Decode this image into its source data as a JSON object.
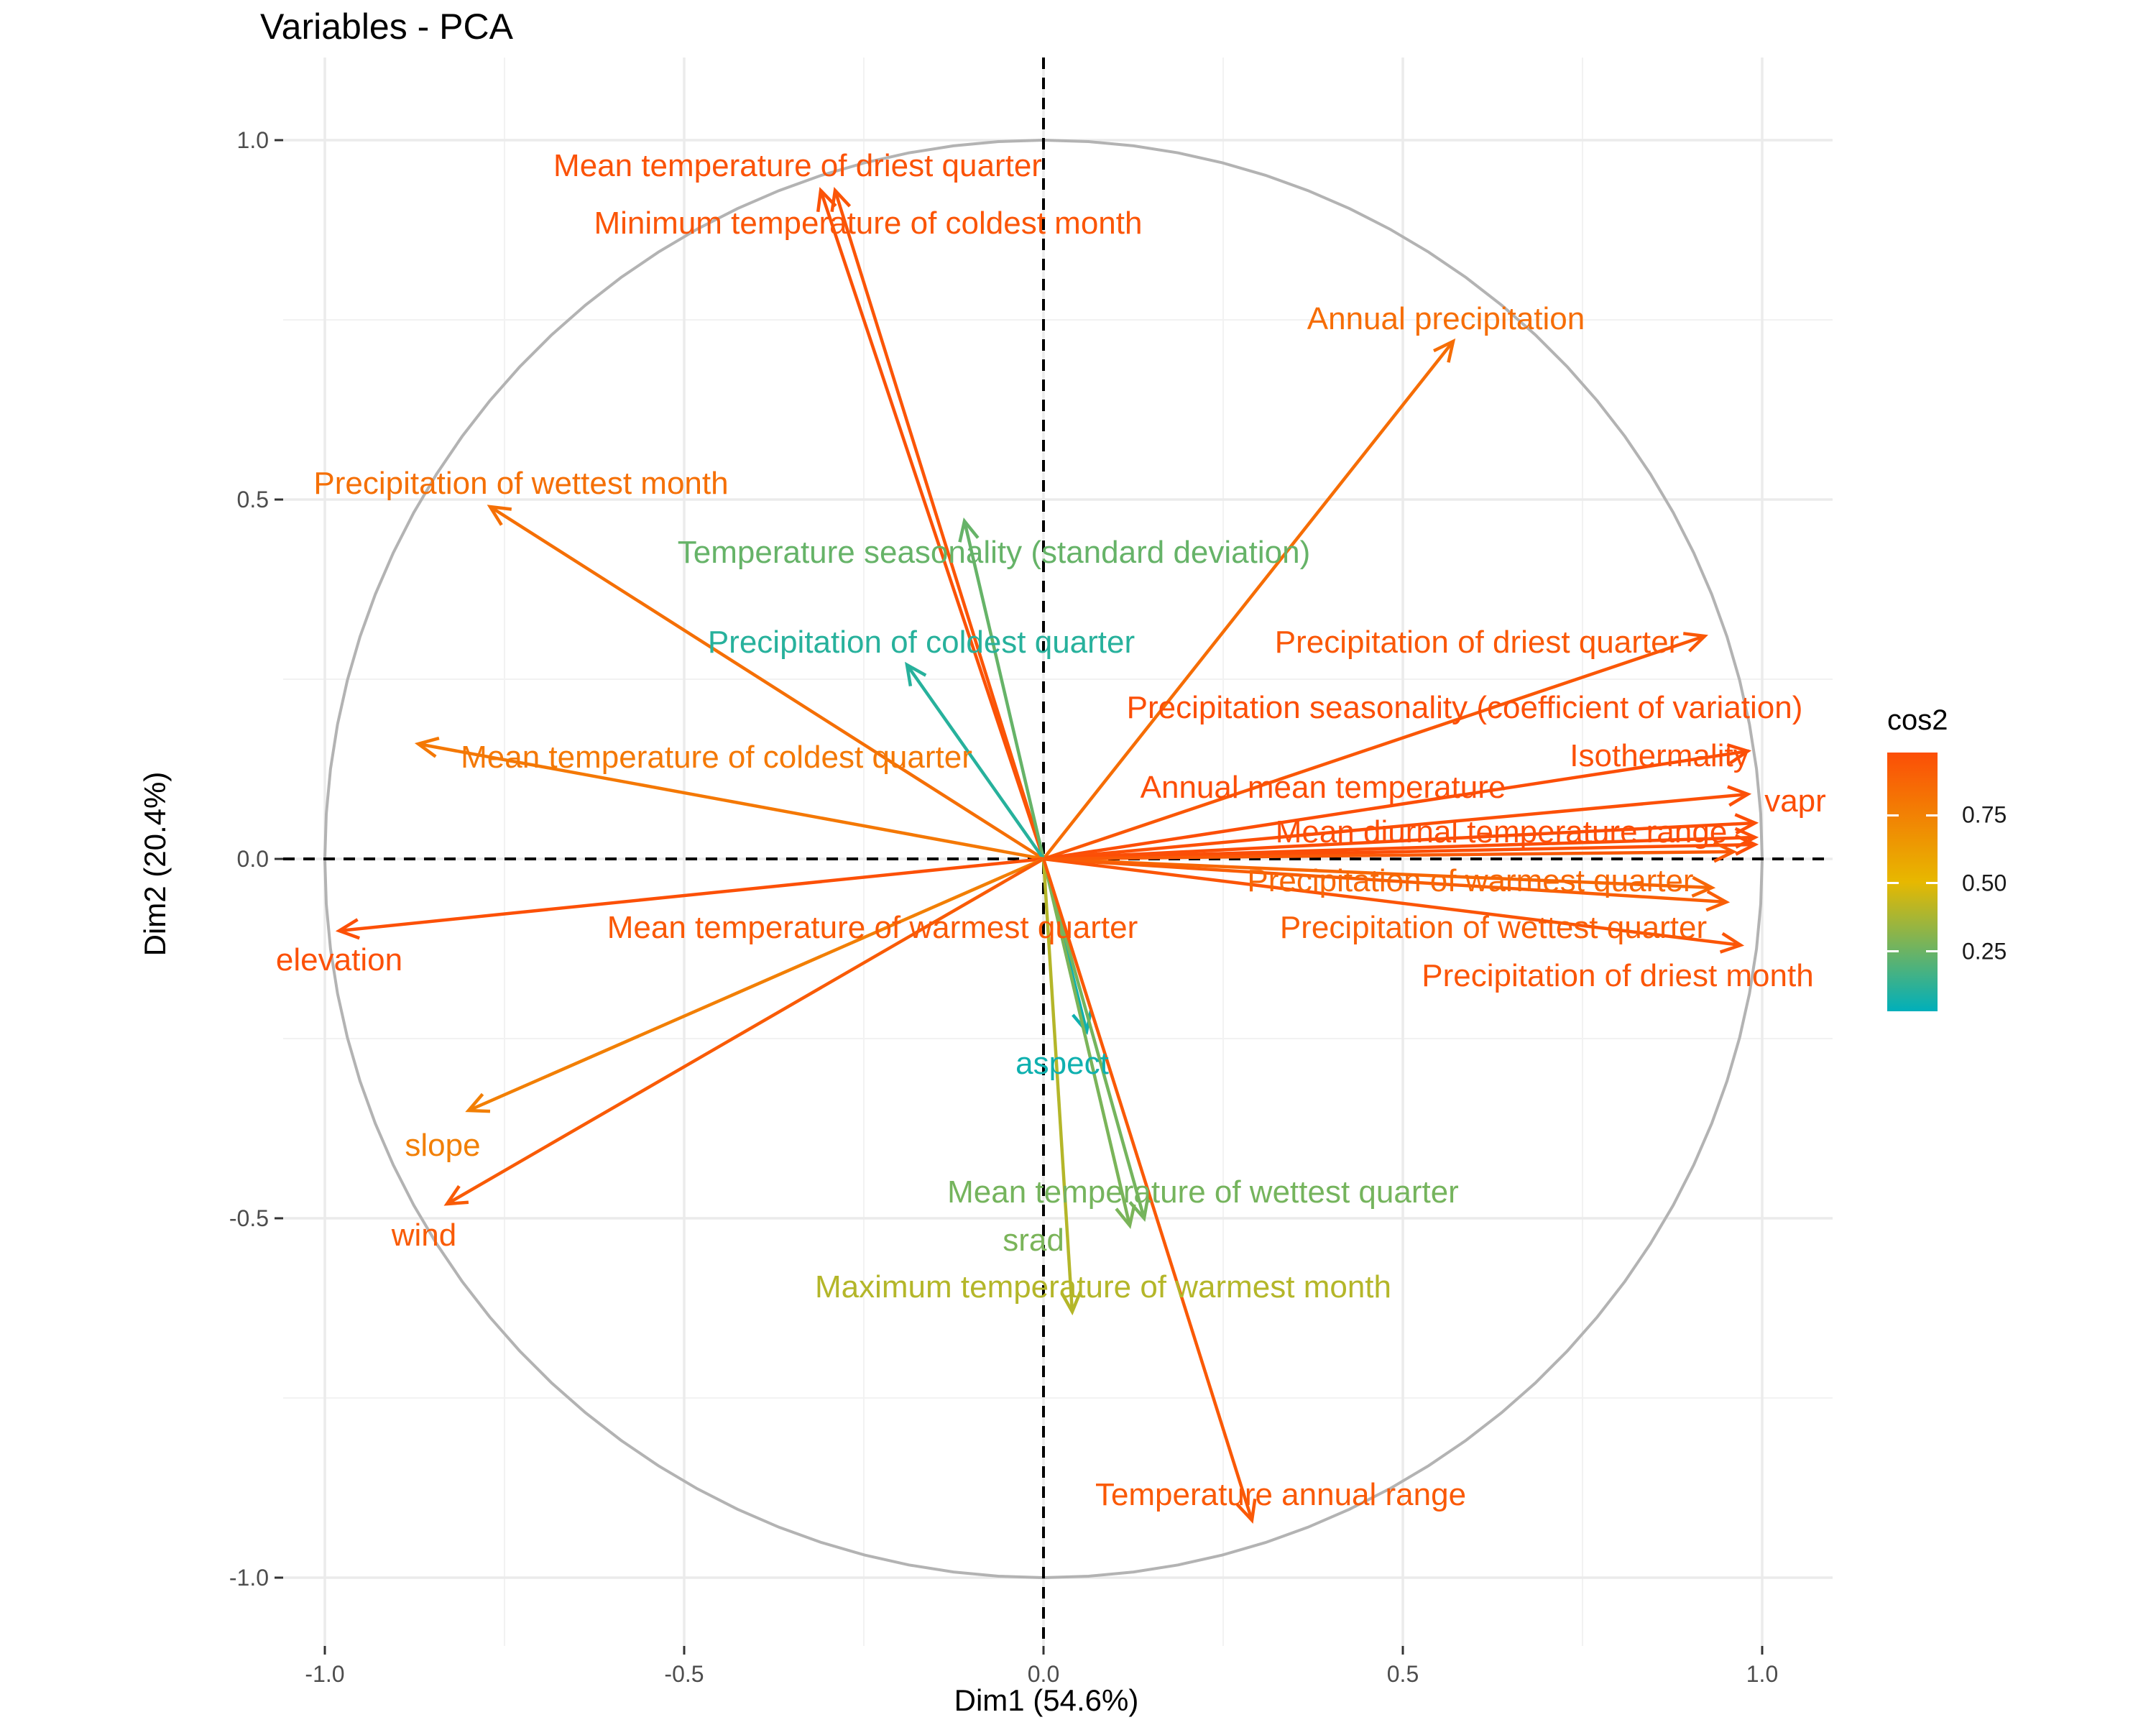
{
  "title": "Variables - PCA",
  "chart_data": {
    "type": "scatter",
    "title": "Variables - PCA",
    "xlabel": "Dim1 (54.6%)",
    "ylabel": "Dim2 (20.4%)",
    "xlim": [
      -1.1,
      1.1
    ],
    "ylim": [
      -1.1,
      1.05
    ],
    "x_ticks": [
      "-1.0",
      "-0.5",
      "0.0",
      "0.5",
      "1.0"
    ],
    "y_ticks": [
      "-1.0",
      "-0.5",
      "0.0",
      "0.5",
      "1.0"
    ],
    "grid": true,
    "correlation_circle": true,
    "color_variable": "cos2",
    "legend": {
      "title": "cos2",
      "placement": "right",
      "ticks": [
        "0.25",
        "0.50",
        "0.75"
      ],
      "tick_values": [
        0.25,
        0.5,
        0.75
      ],
      "range": [
        0.03,
        0.98
      ],
      "colors": [
        "#00AFBB",
        "#E7B800",
        "#FC4E07"
      ]
    },
    "series": [
      {
        "label": "Mean temperature of driest quarter",
        "x": -0.31,
        "y": 0.93,
        "cos2": 0.96
      },
      {
        "label": "Minimum temperature of coldest month",
        "x": -0.29,
        "y": 0.93,
        "cos2": 0.95
      },
      {
        "label": "Annual precipitation",
        "x": 0.57,
        "y": 0.72,
        "cos2": 0.84
      },
      {
        "label": "Precipitation of wettest month",
        "x": -0.77,
        "y": 0.49,
        "cos2": 0.83
      },
      {
        "label": "Temperature seasonality (standard deviation)",
        "x": -0.11,
        "y": 0.47,
        "cos2": 0.24
      },
      {
        "label": "Precipitation of coldest quarter",
        "x": -0.19,
        "y": 0.27,
        "cos2": 0.11
      },
      {
        "label": "Precipitation of driest quarter",
        "x": 0.92,
        "y": 0.31,
        "cos2": 0.94
      },
      {
        "label": "Precipitation seasonality (coefficient of variation)",
        "x": 0.98,
        "y": 0.15,
        "cos2": 0.98
      },
      {
        "label": "Isothermality",
        "x": 0.98,
        "y": 0.09,
        "cos2": 0.97
      },
      {
        "label": "vapr",
        "x": 0.99,
        "y": 0.05,
        "cos2": 0.98
      },
      {
        "label": "Annual mean temperature",
        "x": 0.99,
        "y": 0.03,
        "cos2": 0.98
      },
      {
        "label": "Mean diurnal temperature range",
        "x": 0.99,
        "y": 0.02,
        "cos2": 0.98
      },
      {
        "label": "Precipitation of warmest quarter",
        "x": 0.93,
        "y": -0.04,
        "cos2": 0.87
      },
      {
        "label": "Precipitation of wettest quarter",
        "x": 0.95,
        "y": -0.06,
        "cos2": 0.91
      },
      {
        "label": "Precipitation of driest month",
        "x": 0.97,
        "y": -0.12,
        "cos2": 0.95
      },
      {
        "label": "Mean temperature of coldest quarter",
        "x": -0.87,
        "y": 0.16,
        "cos2": 0.79
      },
      {
        "label": "Mean temperature of warmest quarter",
        "x": 0.96,
        "y": 0.01,
        "cos2": 0.93
      },
      {
        "label": "elevation",
        "x": -0.98,
        "y": -0.1,
        "cos2": 0.97
      },
      {
        "label": "slope",
        "x": -0.8,
        "y": -0.35,
        "cos2": 0.76
      },
      {
        "label": "wind",
        "x": -0.83,
        "y": -0.48,
        "cos2": 0.92
      },
      {
        "label": "aspect",
        "x": 0.06,
        "y": -0.24,
        "cos2": 0.06
      },
      {
        "label": "Mean temperature of wettest quarter",
        "x": 0.14,
        "y": -0.5,
        "cos2": 0.27
      },
      {
        "label": "srad",
        "x": 0.12,
        "y": -0.51,
        "cos2": 0.28
      },
      {
        "label": "Maximum temperature of warmest month",
        "x": 0.04,
        "y": -0.63,
        "cos2": 0.4
      },
      {
        "label": "Temperature annual range",
        "x": 0.29,
        "y": -0.92,
        "cos2": 0.93
      }
    ]
  }
}
